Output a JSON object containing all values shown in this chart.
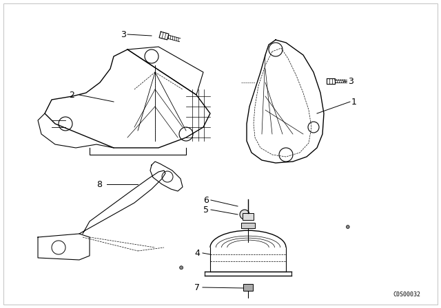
{
  "background_color": "#ffffff",
  "line_color": "#000000",
  "fig_width": 6.4,
  "fig_height": 4.48,
  "dpi": 100,
  "diagram_id": "C0S00032",
  "border_color": "#cccccc"
}
